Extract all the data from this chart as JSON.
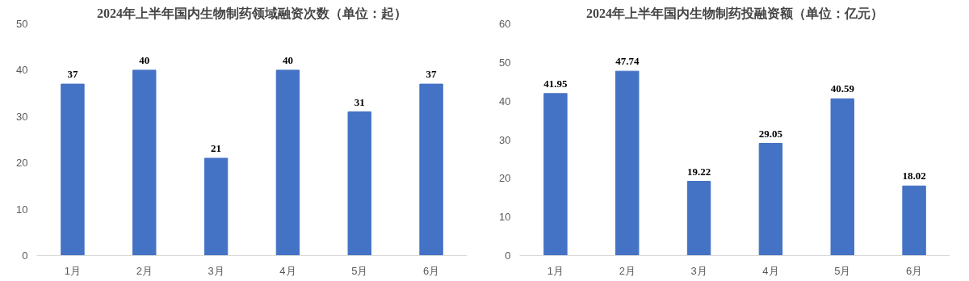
{
  "chart_data": [
    {
      "type": "bar",
      "title": "2024年上半年国内生物制药领域融资次数（单位：起）",
      "categories": [
        "1月",
        "2月",
        "3月",
        "4月",
        "5月",
        "6月"
      ],
      "values": [
        37,
        40,
        21,
        40,
        31,
        37
      ],
      "color": "#4472c4",
      "ylim": [
        0,
        50
      ],
      "yticks": [
        0,
        10,
        20,
        30,
        40,
        50
      ],
      "grid": false,
      "data_labels": true
    },
    {
      "type": "bar",
      "title": "2024年上半年国内生物制药投融资额（单位：亿元）",
      "categories": [
        "1月",
        "2月",
        "3月",
        "4月",
        "5月",
        "6月"
      ],
      "values": [
        41.95,
        47.74,
        19.22,
        29.05,
        40.59,
        18.02
      ],
      "color": "#4472c4",
      "ylim": [
        0,
        60
      ],
      "yticks": [
        0,
        10,
        20,
        30,
        40,
        50,
        60
      ],
      "grid": false,
      "data_labels": true
    }
  ]
}
